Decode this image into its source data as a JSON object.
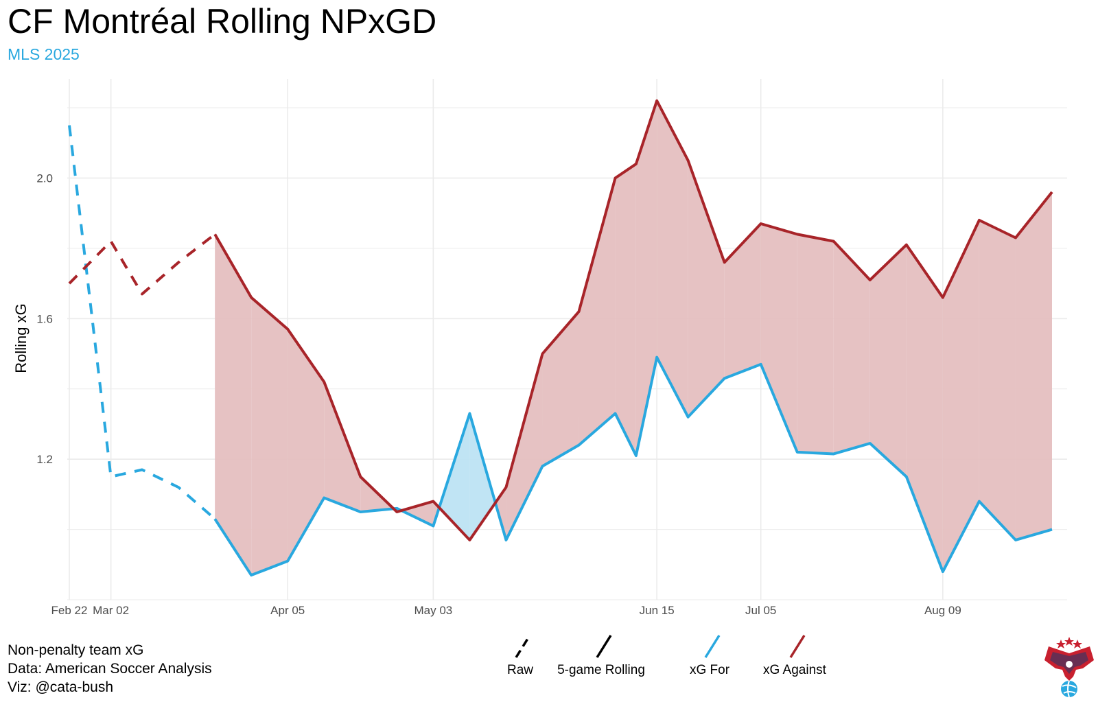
{
  "title": "CF Montréal Rolling NPxGD",
  "subtitle": "MLS 2025",
  "caption": [
    "Non-penalty team xG",
    "Data: American Soccer Analysis",
    "Viz: @cata-bush"
  ],
  "colors": {
    "xg_for": "#29a8df",
    "xg_against": "#a82429",
    "fill_against": "#e5bfc0",
    "fill_for": "#bde3f3",
    "grid": "#ebebeb"
  },
  "chart_data": {
    "type": "line",
    "ylabel": "Rolling xG",
    "ylim": [
      0.8,
      2.2
    ],
    "y_ticks": [
      1.2,
      1.6,
      2.0
    ],
    "x_ticks": [
      {
        "date": "2025-02-22",
        "label": "Feb 22"
      },
      {
        "date": "2025-03-02",
        "label": "Mar 02"
      },
      {
        "date": "2025-04-05",
        "label": "Apr 05"
      },
      {
        "date": "2025-05-03",
        "label": "May 03"
      },
      {
        "date": "2025-06-15",
        "label": "Jun 15"
      },
      {
        "date": "2025-07-05",
        "label": "Jul 05"
      },
      {
        "date": "2025-08-09",
        "label": "Aug 09"
      }
    ],
    "linetypes": [
      {
        "name": "Raw",
        "dash": true
      },
      {
        "name": "5-game Rolling",
        "dash": false
      }
    ],
    "series": [
      {
        "name": "xG For",
        "raw": [
          [
            "2025-02-22",
            2.15
          ],
          [
            "2025-03-02",
            1.15
          ],
          [
            "2025-03-08",
            1.17
          ],
          [
            "2025-03-15",
            1.12
          ],
          [
            "2025-03-22",
            1.03
          ]
        ],
        "rolling": [
          [
            "2025-03-22",
            1.03
          ],
          [
            "2025-03-29",
            0.87
          ],
          [
            "2025-04-05",
            0.91
          ],
          [
            "2025-04-12",
            1.09
          ],
          [
            "2025-04-19",
            1.05
          ],
          [
            "2025-04-26",
            1.06
          ],
          [
            "2025-05-03",
            1.01
          ],
          [
            "2025-05-10",
            1.33
          ],
          [
            "2025-05-17",
            0.97
          ],
          [
            "2025-05-24",
            1.18
          ],
          [
            "2025-05-31",
            1.24
          ],
          [
            "2025-06-07",
            1.33
          ],
          [
            "2025-06-11",
            1.21
          ],
          [
            "2025-06-15",
            1.49
          ],
          [
            "2025-06-21",
            1.32
          ],
          [
            "2025-06-28",
            1.43
          ],
          [
            "2025-07-05",
            1.47
          ],
          [
            "2025-07-12",
            1.22
          ],
          [
            "2025-07-19",
            1.215
          ],
          [
            "2025-07-26",
            1.245
          ],
          [
            "2025-08-02",
            1.15
          ],
          [
            "2025-08-09",
            0.88
          ],
          [
            "2025-08-16",
            1.08
          ],
          [
            "2025-08-23",
            0.97
          ],
          [
            "2025-08-30",
            1.0
          ]
        ]
      },
      {
        "name": "xG Against",
        "raw": [
          [
            "2025-02-22",
            1.7
          ],
          [
            "2025-03-02",
            1.82
          ],
          [
            "2025-03-08",
            1.67
          ],
          [
            "2025-03-15",
            1.76
          ],
          [
            "2025-03-22",
            1.84
          ]
        ],
        "rolling": [
          [
            "2025-03-22",
            1.84
          ],
          [
            "2025-03-29",
            1.66
          ],
          [
            "2025-04-05",
            1.57
          ],
          [
            "2025-04-12",
            1.42
          ],
          [
            "2025-04-19",
            1.15
          ],
          [
            "2025-04-26",
            1.05
          ],
          [
            "2025-05-03",
            1.08
          ],
          [
            "2025-05-10",
            0.97
          ],
          [
            "2025-05-17",
            1.12
          ],
          [
            "2025-05-24",
            1.5
          ],
          [
            "2025-05-31",
            1.62
          ],
          [
            "2025-06-07",
            2.0
          ],
          [
            "2025-06-11",
            2.04
          ],
          [
            "2025-06-15",
            2.22
          ],
          [
            "2025-06-21",
            2.05
          ],
          [
            "2025-06-28",
            1.76
          ],
          [
            "2025-07-05",
            1.87
          ],
          [
            "2025-07-12",
            1.84
          ],
          [
            "2025-07-19",
            1.82
          ],
          [
            "2025-07-26",
            1.71
          ],
          [
            "2025-08-02",
            1.81
          ],
          [
            "2025-08-09",
            1.66
          ],
          [
            "2025-08-16",
            1.88
          ],
          [
            "2025-08-23",
            1.83
          ],
          [
            "2025-08-30",
            1.96
          ]
        ]
      }
    ]
  }
}
